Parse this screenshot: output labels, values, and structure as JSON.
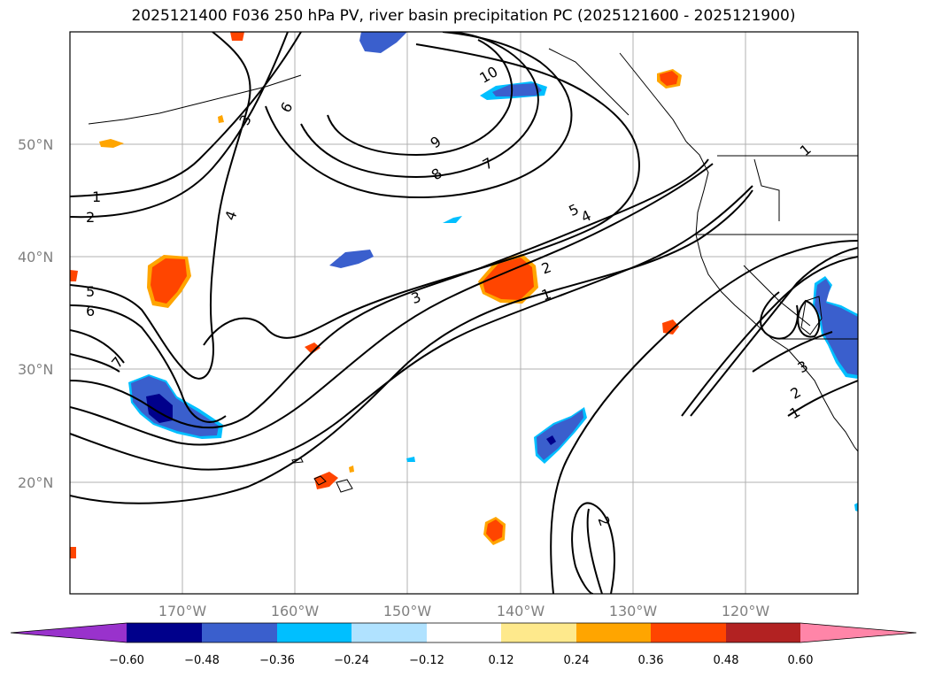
{
  "title": "2025121400 F036 250 hPa PV, river basin precipitation PC (2025121600 - 2025121900)",
  "map": {
    "lat_labels": [
      "50°N",
      "40°N",
      "30°N",
      "20°N"
    ],
    "lon_labels": [
      "170°W",
      "160°W",
      "150°W",
      "140°W",
      "130°W",
      "120°W"
    ]
  },
  "pv_contour_labels": [
    "10",
    "9",
    "8",
    "7",
    "6",
    "3",
    "4",
    "1",
    "2",
    "5",
    "6",
    "7",
    "5",
    "4",
    "3",
    "2",
    "1",
    "2",
    "1",
    "3",
    "2",
    "1"
  ],
  "colorbar": {
    "ticks": [
      "−0.60",
      "−0.48",
      "−0.36",
      "−0.24",
      "−0.12",
      "0.12",
      "0.24",
      "0.36",
      "0.48",
      "0.60"
    ],
    "colors": [
      "#9932cc",
      "#00008b",
      "#3a5fcd",
      "#00bfff",
      "#b0e2ff",
      "#ffffff",
      "#fee98c",
      "#ffa500",
      "#ff4500",
      "#b22222",
      "#ff85a8",
      "#ff85a8"
    ]
  }
}
